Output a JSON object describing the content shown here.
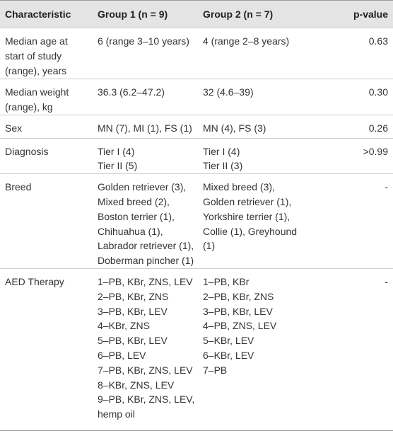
{
  "table": {
    "header": [
      "Characteristic",
      "Group 1 (n = 9)",
      "Group 2 (n = 7)",
      "p-value"
    ],
    "rows": [
      [
        [
          "Median age at",
          "start of study",
          "(range), years"
        ],
        [
          "6 (range 3–10 years)"
        ],
        [
          "4 (range 2–8 years)"
        ],
        "0.63"
      ],
      [
        [
          "Median weight",
          "(range), kg"
        ],
        [
          "36.3 (6.2–47.2)"
        ],
        [
          "32 (4.6–39)"
        ],
        "0.30"
      ],
      [
        [
          "Sex"
        ],
        [
          "MN (7), MI (1), FS (1)"
        ],
        [
          "MN (4), FS (3)"
        ],
        "0.26"
      ],
      [
        [
          "Diagnosis"
        ],
        [
          "Tier I (4)",
          "Tier II (5)"
        ],
        [
          "Tier I (4)",
          "Tier II (3)"
        ],
        ">0.99"
      ],
      [
        [
          "Breed"
        ],
        [
          "Golden retriever (3),",
          "Mixed breed (2),",
          "Boston terrier (1),",
          "Chihuahua (1),",
          "Labrador retriever (1),",
          "Doberman pincher (1)"
        ],
        [
          "Mixed breed (3),",
          "Golden retriever (1),",
          "Yorkshire terrier (1),",
          "Collie (1), Greyhound",
          "(1)"
        ],
        "-"
      ],
      [
        [
          "AED Therapy"
        ],
        [
          "1–PB, KBr, ZNS, LEV",
          "2–PB, KBr, ZNS",
          "3–PB, KBr, LEV",
          "4–KBr, ZNS",
          "5–PB, KBr, LEV",
          "6–PB, LEV",
          "7–PB, KBr, ZNS, LEV",
          "8–KBr, ZNS, LEV",
          "9–PB, KBr, ZNS, LEV,",
          "hemp oil"
        ],
        [
          "1–PB, KBr",
          "2–PB, KBr, ZNS",
          "3–PB, KBr, LEV",
          "4–PB, ZNS, LEV",
          "5–KBr, LEV",
          "6–KBr, LEV",
          "7–PB"
        ],
        "-"
      ]
    ]
  }
}
